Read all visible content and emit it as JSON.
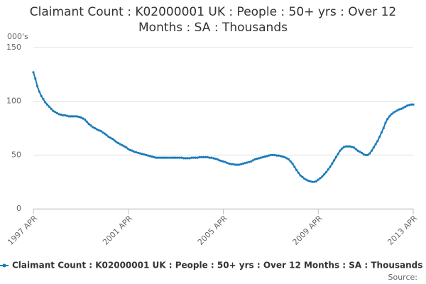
{
  "chart_data": {
    "type": "line",
    "title": "Claimant Count : K02000001 UK : People : 50+ yrs : Over 12 Months : SA : Thousands",
    "y_label": "000's",
    "source": "Source:",
    "categories": [
      "1997 APR",
      null,
      null,
      null,
      null,
      null,
      null,
      null,
      null,
      null,
      null,
      null,
      null,
      null,
      null,
      null,
      null,
      null,
      null,
      null,
      null,
      null,
      null,
      null,
      null,
      null,
      null,
      null,
      null,
      null,
      null,
      null,
      null,
      null,
      null,
      null,
      null,
      null,
      null,
      null,
      null,
      null,
      null,
      null,
      null,
      null,
      null,
      null,
      "2001 APR",
      null,
      null,
      null,
      null,
      null,
      null,
      null,
      null,
      null,
      null,
      null,
      null,
      null,
      null,
      null,
      null,
      null,
      null,
      null,
      null,
      null,
      null,
      null,
      null,
      null,
      null,
      null,
      null,
      null,
      null,
      null,
      null,
      null,
      null,
      null,
      null,
      null,
      null,
      null,
      null,
      null,
      null,
      null,
      null,
      null,
      null,
      null,
      "2005 APR",
      null,
      null,
      null,
      null,
      null,
      null,
      null,
      null,
      null,
      null,
      null,
      null,
      null,
      null,
      null,
      null,
      null,
      null,
      null,
      null,
      null,
      null,
      null,
      null,
      null,
      null,
      null,
      null,
      null,
      null,
      null,
      null,
      null,
      null,
      null,
      null,
      null,
      null,
      null,
      null,
      null,
      null,
      null,
      null,
      null,
      null,
      null,
      "2009 APR",
      null,
      null,
      null,
      null,
      null,
      null,
      null,
      null,
      null,
      null,
      null,
      null,
      null,
      null,
      null,
      null,
      null,
      null,
      null,
      null,
      null,
      null,
      null,
      null,
      null,
      null,
      null,
      null,
      null,
      null,
      null,
      null,
      null,
      null,
      null,
      null,
      null,
      null,
      null,
      null,
      null,
      null,
      null,
      null,
      null,
      null,
      null,
      "2013 APR"
    ],
    "series": [
      {
        "name": "Claimant Count : K02000001 UK : People : 50+ yrs : Over 12 Months : SA : Thousands",
        "color": "#1a7bb9",
        "values": [
          127,
          121,
          114,
          109,
          105,
          102,
          99,
          97,
          95,
          93,
          91,
          90,
          89,
          88,
          87.5,
          87,
          87,
          86.5,
          86,
          86,
          86,
          86,
          86,
          85.5,
          85,
          84,
          83,
          81,
          79,
          77.5,
          76,
          75,
          74,
          73,
          72.5,
          71,
          70,
          68.5,
          67,
          66,
          65,
          63.5,
          62,
          61,
          60,
          59,
          58,
          57,
          55.5,
          54.5,
          54,
          53,
          52.5,
          52,
          51.5,
          51,
          50.5,
          50,
          49.5,
          49,
          48.5,
          48,
          47.5,
          47.5,
          47.5,
          47.5,
          47.5,
          47.5,
          47.5,
          47.5,
          47.5,
          47.5,
          47.5,
          47.5,
          47.5,
          47.5,
          47,
          47,
          47,
          47,
          47.5,
          47.5,
          47.5,
          47.5,
          48,
          48,
          48,
          48,
          48,
          47.5,
          47.5,
          47,
          46.5,
          46,
          45,
          44.5,
          44,
          43.5,
          42.5,
          42,
          41.5,
          41.5,
          41,
          41,
          41,
          41.5,
          42,
          42.5,
          43,
          43.5,
          44,
          45,
          46,
          46.5,
          47,
          47.5,
          48,
          48.5,
          49,
          49.5,
          50,
          50,
          50,
          49.5,
          49.5,
          49,
          48.5,
          48,
          47,
          46,
          44,
          42,
          39,
          36,
          33.5,
          31,
          29.5,
          28,
          27,
          26,
          25.5,
          25,
          25,
          25.5,
          27,
          28.5,
          30,
          32,
          34,
          36.5,
          39,
          42,
          45,
          48,
          51,
          54,
          56,
          57.5,
          58,
          58,
          58,
          57.5,
          57,
          55.5,
          54,
          53,
          52,
          50.5,
          50,
          50,
          51.5,
          54,
          57,
          60,
          63,
          67,
          71,
          75,
          80,
          83.5,
          86,
          88,
          89.5,
          90.5,
          91.5,
          92.5,
          93,
          94,
          95,
          96,
          96.5,
          97,
          97
        ]
      }
    ],
    "ylim": [
      0,
      150
    ],
    "yticks": [
      0,
      50,
      100,
      150
    ],
    "grid": true
  }
}
